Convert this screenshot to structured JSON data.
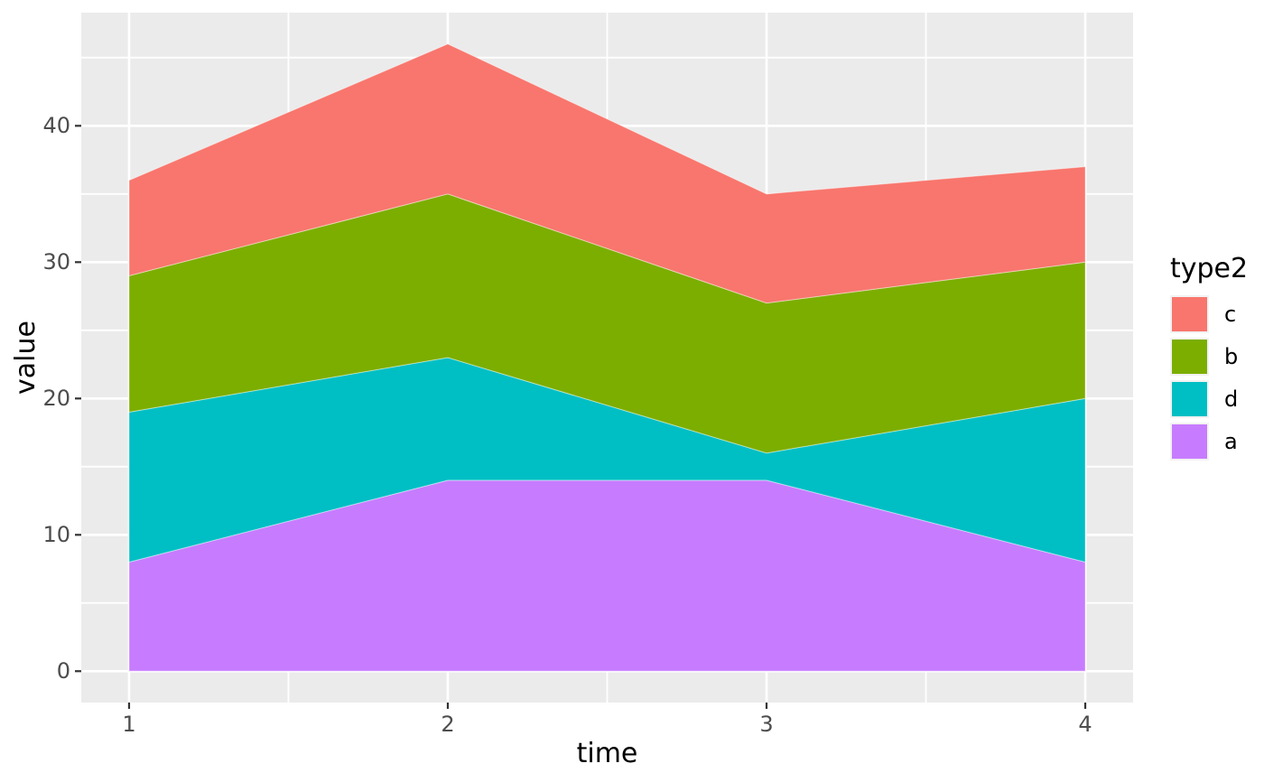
{
  "figure": {
    "background": "#FFFFFF",
    "panel_background": "#EBEBEB",
    "grid_color": "#FFFFFF",
    "tick_color": "#333333",
    "tick_label_color": "#4D4D4D"
  },
  "chart_data": {
    "type": "area",
    "stacked": true,
    "title": "",
    "xlabel": "time",
    "ylabel": "value",
    "legend_title": "type2",
    "legend_position": "right",
    "grid": "on",
    "x": [
      1,
      2,
      3,
      4
    ],
    "x_ticks": [
      "1",
      "2",
      "3",
      "4"
    ],
    "y_ticks": [
      "0",
      "10",
      "20",
      "30",
      "40"
    ],
    "x_major": [
      1,
      2,
      3,
      4
    ],
    "x_minor": [
      1.5,
      2.5,
      3.5
    ],
    "y_major": [
      0,
      10,
      20,
      30,
      40
    ],
    "y_minor": [
      5,
      15,
      25,
      35,
      45
    ],
    "x_range": [
      0.85,
      4.15
    ],
    "y_range": [
      -2.3,
      48.3
    ],
    "xlim": [
      1,
      4
    ],
    "ylim": [
      0,
      46
    ],
    "series": [
      {
        "name": "a",
        "color": "#C77CFF",
        "values": [
          8,
          14,
          14,
          8
        ]
      },
      {
        "name": "d",
        "color": "#00BFC4",
        "values": [
          11,
          9,
          2,
          12
        ]
      },
      {
        "name": "b",
        "color": "#7CAE00",
        "values": [
          10,
          12,
          11,
          10
        ]
      },
      {
        "name": "c",
        "color": "#F8766D",
        "values": [
          7,
          11,
          8,
          7
        ]
      }
    ],
    "stack_totals": [
      36,
      46,
      35,
      37
    ],
    "legend_entries": [
      {
        "label": "c",
        "color": "#F8766D"
      },
      {
        "label": "b",
        "color": "#7CAE00"
      },
      {
        "label": "d",
        "color": "#00BFC4"
      },
      {
        "label": "a",
        "color": "#C77CFF"
      }
    ]
  }
}
